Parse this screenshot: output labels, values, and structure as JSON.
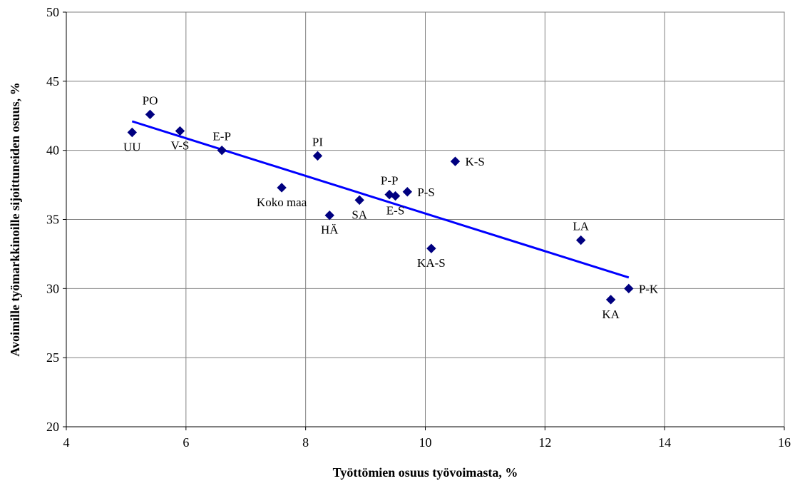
{
  "chart_data": {
    "type": "scatter",
    "title": "",
    "xlabel": "Työttömien osuus työvoimasta, %",
    "ylabel": "Avoimille työmarkkinoille sijoittuneiden osuus, %",
    "xlim": [
      4,
      16
    ],
    "ylim": [
      20,
      50
    ],
    "xticks": [
      4,
      6,
      8,
      10,
      12,
      14,
      16
    ],
    "yticks": [
      20,
      25,
      30,
      35,
      40,
      45,
      50
    ],
    "grid": true,
    "marker": "diamond",
    "marker_color": "#000080",
    "trendline_color": "#0000FF",
    "points": [
      {
        "label": "UU",
        "x": 5.1,
        "y": 41.3,
        "label_pos": "below"
      },
      {
        "label": "PO",
        "x": 5.4,
        "y": 42.6,
        "label_pos": "above"
      },
      {
        "label": "V-S",
        "x": 5.9,
        "y": 41.4,
        "label_pos": "below"
      },
      {
        "label": "E-P",
        "x": 6.6,
        "y": 40.0,
        "label_pos": "above"
      },
      {
        "label": "Koko maa",
        "x": 7.6,
        "y": 37.3,
        "label_pos": "below"
      },
      {
        "label": "PI",
        "x": 8.2,
        "y": 39.6,
        "label_pos": "above"
      },
      {
        "label": "HÄ",
        "x": 8.4,
        "y": 35.3,
        "label_pos": "below"
      },
      {
        "label": "SA",
        "x": 8.9,
        "y": 36.4,
        "label_pos": "below"
      },
      {
        "label": "P-P",
        "x": 9.4,
        "y": 36.8,
        "label_pos": "above"
      },
      {
        "label": "E-S",
        "x": 9.5,
        "y": 36.7,
        "label_pos": "below"
      },
      {
        "label": "P-S",
        "x": 9.7,
        "y": 37.0,
        "label_pos": "right"
      },
      {
        "label": "KA-S",
        "x": 10.1,
        "y": 32.9,
        "label_pos": "below"
      },
      {
        "label": "K-S",
        "x": 10.5,
        "y": 39.2,
        "label_pos": "right"
      },
      {
        "label": "LA",
        "x": 12.6,
        "y": 33.5,
        "label_pos": "above"
      },
      {
        "label": "KA",
        "x": 13.1,
        "y": 29.2,
        "label_pos": "below"
      },
      {
        "label": "P-K",
        "x": 13.4,
        "y": 30.0,
        "label_pos": "right"
      }
    ],
    "trendline": {
      "x": [
        5.1,
        13.4
      ],
      "y": [
        42.1,
        30.8
      ]
    }
  }
}
